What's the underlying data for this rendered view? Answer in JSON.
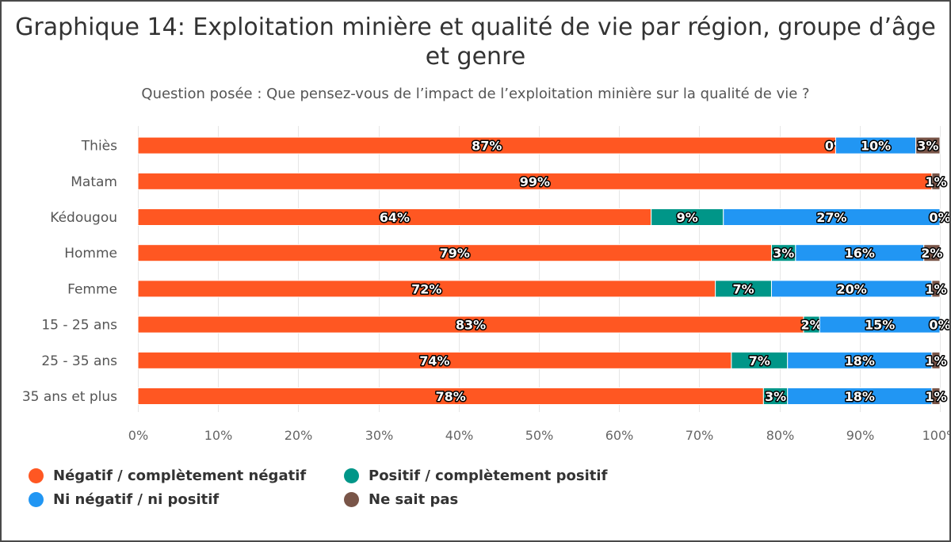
{
  "chart_data": {
    "type": "bar",
    "orientation": "horizontal",
    "stacked": true,
    "percent_stacked": true,
    "title": "Graphique 14: Exploitation minière et qualité de vie par région, groupe d’âge et genre",
    "subtitle": "Question posée : Que pensez-vous de l’impact de l’exploitation minière sur la qualité de vie ?",
    "categories": [
      "Thiès",
      "Matam",
      "Kédougou",
      "Homme",
      "Femme",
      "15 - 25 ans",
      "25 - 35 ans",
      "35 ans et plus"
    ],
    "series": [
      {
        "name": "Négatif / complètement négatif",
        "color": "#FF5722",
        "values": [
          87,
          99,
          64,
          79,
          72,
          83,
          74,
          78
        ]
      },
      {
        "name": "Positif / complètement positif",
        "color": "#009688",
        "values": [
          0,
          0,
          9,
          3,
          7,
          2,
          7,
          3
        ]
      },
      {
        "name": "Ni négatif / ni positif",
        "color": "#2196F3",
        "values": [
          10,
          0,
          27,
          16,
          20,
          15,
          18,
          18
        ]
      },
      {
        "name": "Ne sait pas",
        "color": "#795548",
        "values": [
          3,
          1,
          0,
          2,
          1,
          0,
          1,
          1
        ]
      }
    ],
    "data_labels": [
      [
        "87%",
        "0%",
        "10%",
        "3%"
      ],
      [
        "99%",
        null,
        null,
        "1%"
      ],
      [
        "64%",
        "9%",
        "27%",
        "0%"
      ],
      [
        "79%",
        "3%",
        "16%",
        "2%"
      ],
      [
        "72%",
        "7%",
        "20%",
        "1%"
      ],
      [
        "83%",
        "2%",
        "15%",
        "0%"
      ],
      [
        "74%",
        "7%",
        "18%",
        "1%"
      ],
      [
        "78%",
        "3%",
        "18%",
        "1%"
      ]
    ],
    "xlim": [
      0,
      100
    ],
    "x_ticks": [
      "0%",
      "10%",
      "20%",
      "30%",
      "40%",
      "50%",
      "60%",
      "70%",
      "80%",
      "90%",
      "100%"
    ],
    "grid": true,
    "legend_position": "bottom-left"
  }
}
